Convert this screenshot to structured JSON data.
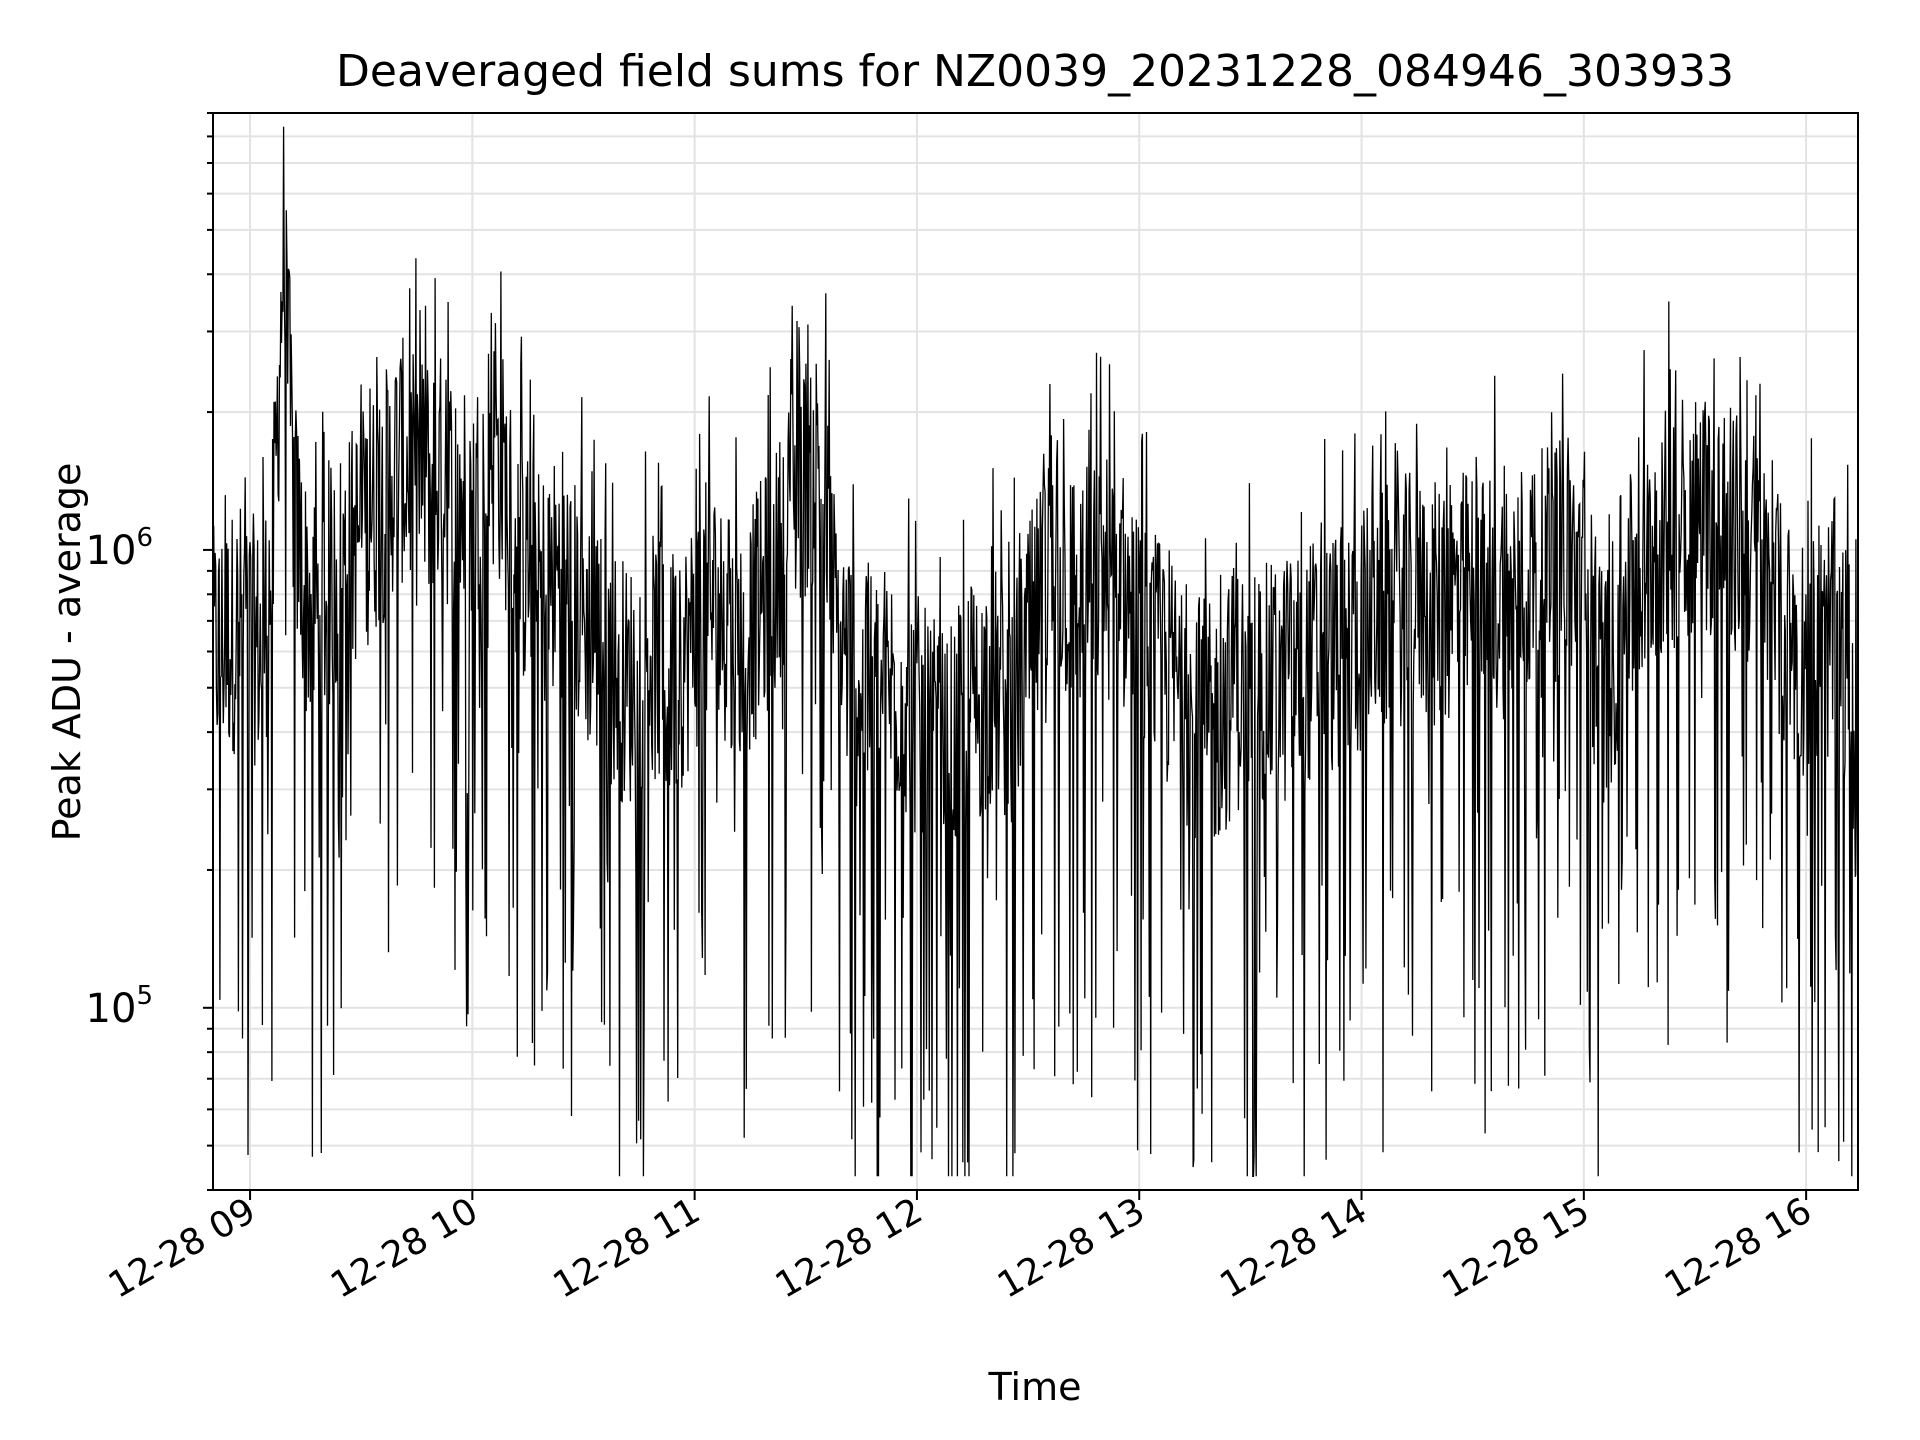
{
  "chart_data": {
    "type": "line",
    "title": "Deaveraged field sums for NZ0039_20231228_084946_303933",
    "xlabel": "Time",
    "ylabel": "Peak ADU - average",
    "yscale": "log",
    "xlim": [
      "2023-12-28 08:50",
      "2023-12-28 16:14"
    ],
    "ylim": [
      40000,
      9000000
    ],
    "grid": true,
    "line_color": "#000000",
    "x_ticks": [
      "12-28 09",
      "12-28 10",
      "12-28 11",
      "12-28 12",
      "12-28 13",
      "12-28 14",
      "12-28 15",
      "12-28 16"
    ],
    "y_ticks": [
      {
        "value": 100000,
        "base": "10",
        "exp": "5"
      },
      {
        "value": 1000000,
        "base": "10",
        "exp": "6"
      }
    ],
    "series": [
      {
        "description": "dense per-frame noisy signal; values at sample times",
        "x": [
          "08:50",
          "08:58",
          "09:03",
          "09:06",
          "09:09",
          "09:12",
          "09:15",
          "09:18",
          "09:24",
          "09:30",
          "09:36",
          "09:40",
          "09:45",
          "09:50",
          "09:56",
          "10:00",
          "10:05",
          "10:08",
          "10:12",
          "10:18",
          "10:24",
          "10:30",
          "10:36",
          "10:42",
          "10:48",
          "10:53",
          "10:58",
          "11:04",
          "11:10",
          "11:16",
          "11:22",
          "11:28",
          "11:34",
          "11:38",
          "11:44",
          "11:50",
          "11:56",
          "12:02",
          "12:08",
          "12:14",
          "12:20",
          "12:26",
          "12:32",
          "12:38",
          "12:44",
          "12:50",
          "12:56",
          "13:02",
          "13:08",
          "13:14",
          "13:20",
          "13:26",
          "13:32",
          "13:38",
          "13:44",
          "13:50",
          "13:56",
          "14:02",
          "14:08",
          "14:14",
          "14:20",
          "14:26",
          "14:32",
          "14:38",
          "14:44",
          "14:50",
          "14:56",
          "15:00",
          "15:03",
          "15:06",
          "15:10",
          "15:16",
          "15:22",
          "15:28",
          "15:34",
          "15:40",
          "15:46",
          "15:52",
          "15:58",
          "16:04",
          "16:08",
          "16:12",
          "16:14"
        ],
        "y": [
          600000,
          700000,
          600000,
          900000,
          4500000,
          1200000,
          800000,
          700000,
          900000,
          1100000,
          1300000,
          1600000,
          1400000,
          1500000,
          1300000,
          1200000,
          1700000,
          1500000,
          1000000,
          800000,
          900000,
          700000,
          600000,
          500000,
          600000,
          500000,
          600000,
          800000,
          600000,
          700000,
          900000,
          1400000,
          1600000,
          700000,
          500000,
          500000,
          500000,
          400000,
          350000,
          450000,
          500000,
          450000,
          700000,
          900000,
          800000,
          900000,
          800000,
          600000,
          550000,
          450000,
          400000,
          500000,
          500000,
          500000,
          550000,
          600000,
          600000,
          700000,
          750000,
          800000,
          750000,
          800000,
          800000,
          800000,
          850000,
          900000,
          1000000,
          800000,
          600000,
          500000,
          700000,
          900000,
          1100000,
          1200000,
          1200000,
          1100000,
          1000000,
          700000,
          600000,
          600000,
          700000,
          500000,
          300000
        ]
      }
    ]
  }
}
